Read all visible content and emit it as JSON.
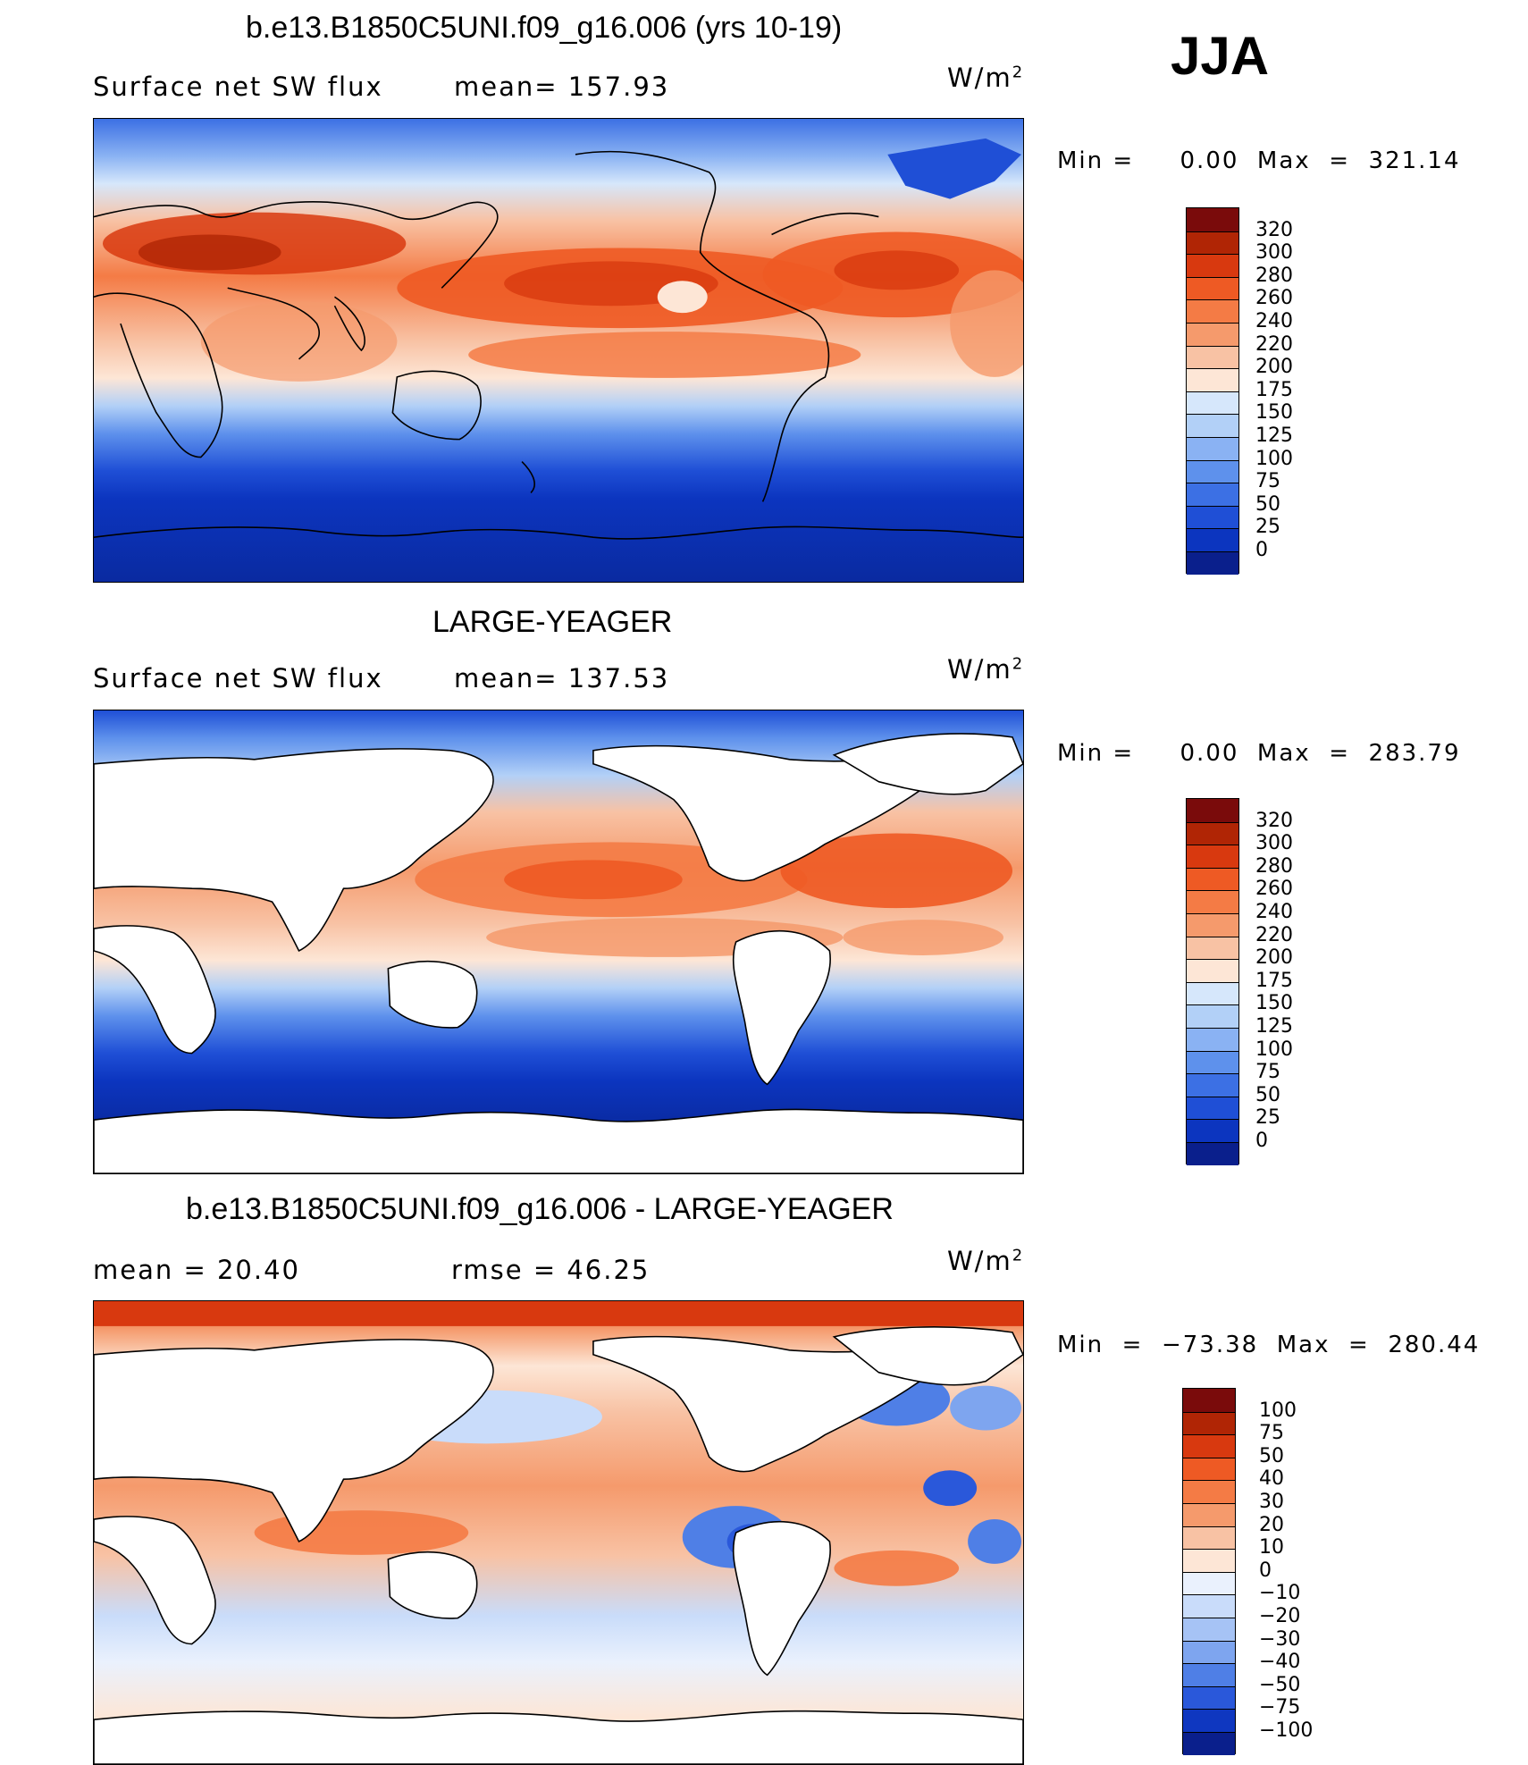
{
  "season": "JJA",
  "panels": [
    {
      "title": "b.e13.B1850C5UNI.f09_g16.006 (yrs 10-19)",
      "left_label": "Surface net SW flux",
      "mid_label": "mean= 157.93",
      "units": "W/m",
      "units_sup": "2",
      "minmax": "Min =     0.00  Max  =  321.14",
      "land_masked": false,
      "colorbar_labels": [
        "320",
        "300",
        "280",
        "260",
        "240",
        "220",
        "200",
        "175",
        "150",
        "125",
        "100",
        "75",
        "50",
        "25",
        "0"
      ],
      "colorbar_colors": [
        "#7a0b0b",
        "#b02505",
        "#d8390f",
        "#ee5a24",
        "#f47b45",
        "#f59a6c",
        "#f8c2a4",
        "#fde6d6",
        "#d6e7fb",
        "#b2d0f7",
        "#8ab2f3",
        "#5e91ec",
        "#3c70e4",
        "#1f4fd6",
        "#0c35bf",
        "#0a1f8c"
      ]
    },
    {
      "title": "LARGE-YEAGER",
      "left_label": "Surface net SW flux",
      "mid_label": "mean= 137.53",
      "units": "W/m",
      "units_sup": "2",
      "minmax": "Min =     0.00  Max  =  283.79",
      "land_masked": true,
      "colorbar_labels": [
        "320",
        "300",
        "280",
        "260",
        "240",
        "220",
        "200",
        "175",
        "150",
        "125",
        "100",
        "75",
        "50",
        "25",
        "0"
      ],
      "colorbar_colors": [
        "#7a0b0b",
        "#b02505",
        "#d8390f",
        "#ee5a24",
        "#f47b45",
        "#f59a6c",
        "#f8c2a4",
        "#fde6d6",
        "#d6e7fb",
        "#b2d0f7",
        "#8ab2f3",
        "#5e91ec",
        "#3c70e4",
        "#1f4fd6",
        "#0c35bf",
        "#0a1f8c"
      ]
    },
    {
      "title": "b.e13.B1850C5UNI.f09_g16.006 - LARGE-YEAGER",
      "left_label": "mean  =    20.40",
      "mid_label": "rmse  =    46.25",
      "units": "W/m",
      "units_sup": "2",
      "minmax": "Min  =  −73.38  Max  =  280.44",
      "land_masked": true,
      "colorbar_labels": [
        "100",
        "75",
        "50",
        "40",
        "30",
        "20",
        "10",
        "0",
        "−10",
        "−20",
        "−30",
        "−40",
        "−50",
        "−75",
        "−100"
      ],
      "colorbar_colors": [
        "#7a0b0b",
        "#b02505",
        "#d8390f",
        "#ee5a24",
        "#f47b45",
        "#f59a6c",
        "#f8c2a4",
        "#fde6d6",
        "#eaf1fd",
        "#c9dcfa",
        "#a6c3f5",
        "#7ea5ef",
        "#4f7fe6",
        "#2a58da",
        "#0f37c0",
        "#0a1f8c"
      ]
    }
  ]
}
